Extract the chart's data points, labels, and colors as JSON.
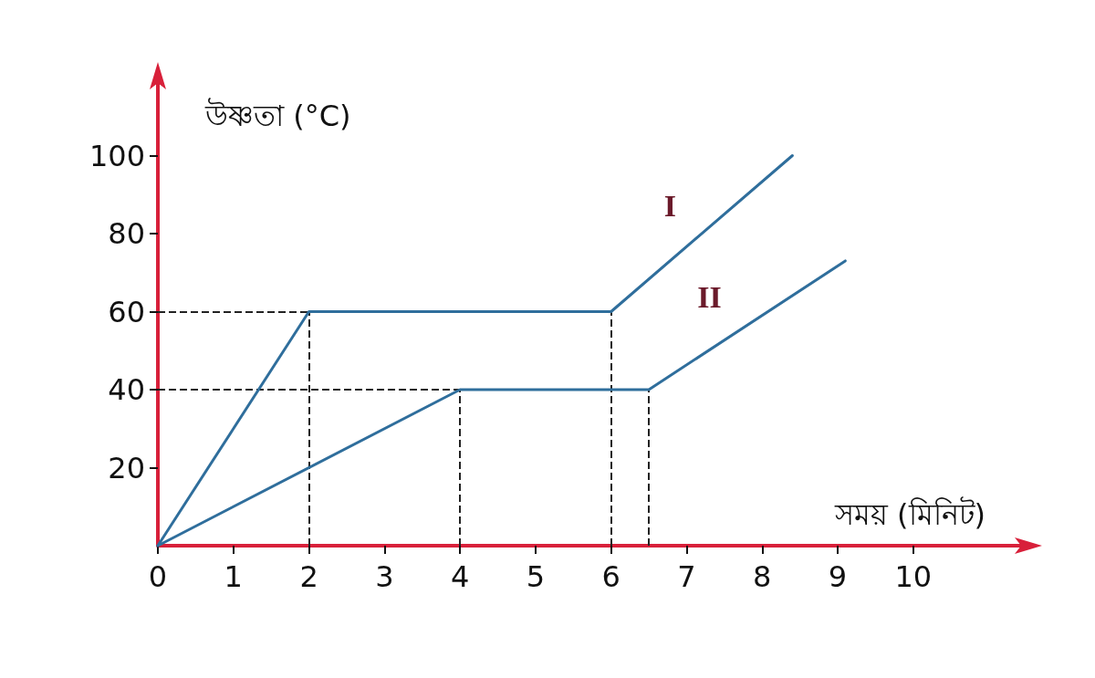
{
  "chart_data": {
    "type": "line",
    "xlabel": "সময় (মিনিট)",
    "ylabel": "উষ্ণতা (°C)",
    "series": [
      {
        "name": "I",
        "color": "#2f6e9c",
        "x": [
          0,
          2,
          6,
          8.4
        ],
        "values": [
          0,
          60,
          60,
          100
        ]
      },
      {
        "name": "II",
        "color": "#2f6e9c",
        "x": [
          0,
          4,
          6.5,
          9.1
        ],
        "values": [
          0,
          40,
          40,
          73
        ]
      }
    ],
    "xlim": [
      0,
      11.5
    ],
    "xticks": [
      0,
      1,
      2,
      3,
      4,
      5,
      6,
      7,
      8,
      9,
      10
    ],
    "ylim": [
      0,
      120
    ],
    "yticks": [
      20,
      40,
      60,
      80,
      100
    ],
    "ref_lines": [
      {
        "axis": "y",
        "value": 60,
        "line_style": "dashed",
        "color": "#222222"
      },
      {
        "axis": "y",
        "value": 40,
        "line_style": "dashed",
        "color": "#222222"
      },
      {
        "axis": "x",
        "value": 2,
        "line_style": "dashed",
        "color": "#222222"
      },
      {
        "axis": "x",
        "value": 4,
        "line_style": "dashed",
        "color": "#222222"
      },
      {
        "axis": "x",
        "value": 6,
        "line_style": "dashed",
        "color": "#222222"
      },
      {
        "axis": "x",
        "value": 6.5,
        "line_style": "dashed",
        "color": "#222222"
      }
    ],
    "grid": false,
    "legend": false,
    "marker": "none",
    "line_style": "solid"
  }
}
